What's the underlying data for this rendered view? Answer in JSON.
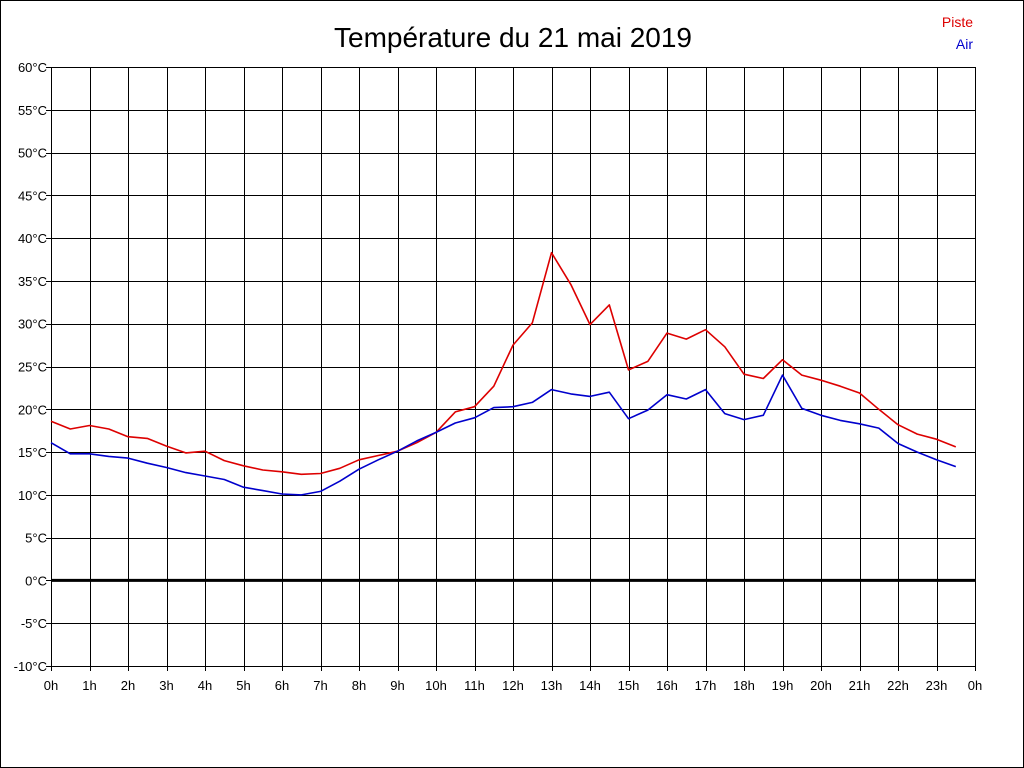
{
  "chart_data": {
    "type": "line",
    "title": "Température du 21 mai 2019",
    "xlabel": "",
    "ylabel": "",
    "x_ticks": [
      "0h",
      "1h",
      "2h",
      "3h",
      "4h",
      "5h",
      "6h",
      "7h",
      "8h",
      "9h",
      "10h",
      "11h",
      "12h",
      "13h",
      "14h",
      "15h",
      "16h",
      "17h",
      "18h",
      "19h",
      "20h",
      "21h",
      "22h",
      "23h",
      "0h"
    ],
    "y_ticks": [
      "-10°C",
      "-5°C",
      "0°C",
      "5°C",
      "10°C",
      "15°C",
      "20°C",
      "25°C",
      "30°C",
      "35°C",
      "40°C",
      "45°C",
      "50°C",
      "55°C",
      "60°C"
    ],
    "xlim": [
      0,
      24
    ],
    "ylim": [
      -10,
      60
    ],
    "grid": true,
    "zero_line": true,
    "legend_position": "top-right",
    "x": [
      0,
      0.5,
      1,
      1.5,
      2,
      2.5,
      3,
      3.5,
      4,
      4.5,
      5,
      5.5,
      6,
      6.5,
      7,
      7.5,
      8,
      8.5,
      9,
      9.5,
      10,
      10.5,
      11,
      11.5,
      12,
      12.5,
      13,
      13.5,
      14,
      14.5,
      15,
      15.5,
      16,
      16.5,
      17,
      17.5,
      18,
      18.5,
      19,
      19.5,
      20,
      20.5,
      21,
      21.5,
      22,
      22.5,
      23,
      23.5
    ],
    "series": [
      {
        "name": "Piste",
        "color": "#dd0000",
        "values": [
          18.6,
          17.7,
          18.1,
          17.7,
          16.8,
          16.6,
          15.7,
          14.9,
          15.1,
          14.0,
          13.4,
          12.9,
          12.7,
          12.4,
          12.5,
          13.1,
          14.1,
          14.6,
          15.1,
          16.1,
          17.3,
          19.7,
          20.3,
          22.7,
          27.5,
          30.1,
          38.3,
          34.6,
          29.9,
          32.2,
          24.6,
          25.6,
          28.9,
          28.2,
          29.3,
          27.3,
          24.1,
          23.6,
          25.8,
          24.0,
          23.4,
          22.7,
          21.9,
          20.0,
          18.2,
          17.1,
          16.5,
          15.6
        ]
      },
      {
        "name": "Air",
        "color": "#0000cc",
        "values": [
          16.1,
          14.8,
          14.8,
          14.5,
          14.3,
          13.7,
          13.2,
          12.6,
          12.2,
          11.8,
          10.9,
          10.5,
          10.1,
          10.0,
          10.4,
          11.6,
          13.0,
          14.1,
          15.1,
          16.3,
          17.3,
          18.4,
          19.0,
          20.2,
          20.3,
          20.8,
          22.3,
          21.8,
          21.5,
          22.0,
          18.9,
          19.9,
          21.7,
          21.2,
          22.3,
          19.5,
          18.8,
          19.3,
          24.0,
          20.1,
          19.3,
          18.7,
          18.3,
          17.8,
          16.0,
          15.0,
          14.1,
          13.3
        ]
      }
    ]
  }
}
